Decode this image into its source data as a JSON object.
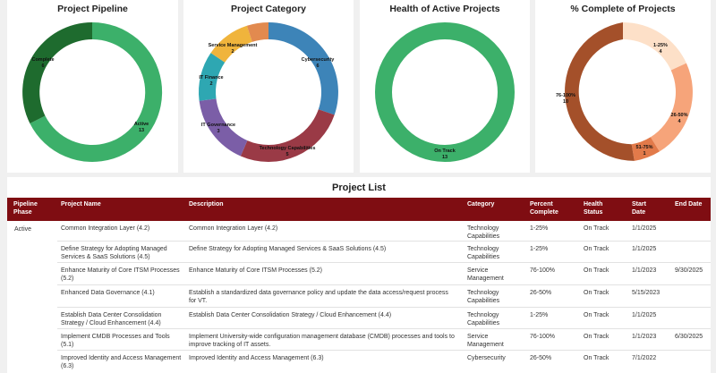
{
  "tiles": [
    {
      "title": "Project Pipeline",
      "labels": [
        [
          "Complete",
          "6"
        ],
        [
          "Active",
          "13"
        ]
      ]
    },
    {
      "title": "Project Category",
      "labels": [
        [
          "Cybersecurity",
          "6"
        ],
        [
          "Technology Capabilities",
          "5"
        ],
        [
          "IT Governance",
          "3"
        ],
        [
          "IT Finance",
          "2"
        ],
        [
          "Service Management",
          "2"
        ]
      ]
    },
    {
      "title": "Health of Active Projects",
      "labels": [
        [
          "On Track",
          "13"
        ]
      ]
    },
    {
      "title": "% Complete of Projects",
      "labels": [
        [
          "1-25%",
          "4"
        ],
        [
          "26-50%",
          "4"
        ],
        [
          "51-75%",
          "1"
        ],
        [
          "76-100%",
          "10"
        ]
      ]
    }
  ],
  "colors": {
    "header_bg": "#7f0d12",
    "pipeline_active": "#3cb06a",
    "pipeline_complete": "#1e6b2e",
    "cat_cyber": "#3d84b8",
    "cat_tech": "#9a3a46",
    "cat_gov": "#7b5ea7",
    "cat_fin": "#2ea7b2",
    "cat_svc": "#f0b43c",
    "cat_other": "#e28a4f",
    "health_ontrack": "#3cb06a",
    "pc_1_25": "#fde0c8",
    "pc_26_50": "#f6a47a",
    "pc_51_75": "#e27a4a",
    "pc_76_100": "#a4502a"
  },
  "project_list": {
    "title": "Project List",
    "headers": [
      "Pipeline Phase",
      "Project Name",
      "Description",
      "Category",
      "Percent Complete",
      "Health Status",
      "Start Date",
      "End Date"
    ],
    "phase": "Active",
    "rows": [
      {
        "name": "Common Integration Layer (4.2)",
        "desc": "Common Integration Layer (4.2)",
        "category": "Technology Capabilities",
        "pct": "1-25%",
        "health": "On Track",
        "start": "1/1/2025",
        "end": ""
      },
      {
        "name": "Define Strategy for Adopting Managed Services & SaaS Solutions (4.5)",
        "desc": "Define Strategy for Adopting Managed Services & SaaS Solutions (4.5)",
        "category": "Technology Capabilities",
        "pct": "1-25%",
        "health": "On Track",
        "start": "1/1/2025",
        "end": ""
      },
      {
        "name": "Enhance Maturity of Core ITSM Processes (5.2)",
        "desc": "Enhance Maturity of Core ITSM Processes (5.2)",
        "category": "Service Management",
        "pct": "76-100%",
        "health": "On Track",
        "start": "1/1/2023",
        "end": "9/30/2025"
      },
      {
        "name": "Enhanced Data Governance (4.1)",
        "desc": "Establish a standardized data governance policy and update the data access/request process for VT.",
        "category": "Technology Capabilities",
        "pct": "26-50%",
        "health": "On Track",
        "start": "5/15/2023",
        "end": ""
      },
      {
        "name": "Establish Data Center Consolidation Strategy / Cloud Enhancement (4.4)",
        "desc": "Establish Data Center Consolidation Strategy / Cloud Enhancement (4.4)",
        "category": "Technology Capabilities",
        "pct": "1-25%",
        "health": "On Track",
        "start": "1/1/2025",
        "end": ""
      },
      {
        "name": "Implement CMDB Processes and Tools (5.1)",
        "desc": "Implement University-wide configuration management database (CMDB) processes and tools to improve tracking of IT assets.",
        "category": "Service Management",
        "pct": "76-100%",
        "health": "On Track",
        "start": "1/1/2023",
        "end": "6/30/2025"
      },
      {
        "name": "Improved Identity and Access Management (6.3)",
        "desc": "Improved Identity and Access Management (6.3)",
        "category": "Cybersecurity",
        "pct": "26-50%",
        "health": "On Track",
        "start": "7/1/2022",
        "end": ""
      }
    ]
  }
}
